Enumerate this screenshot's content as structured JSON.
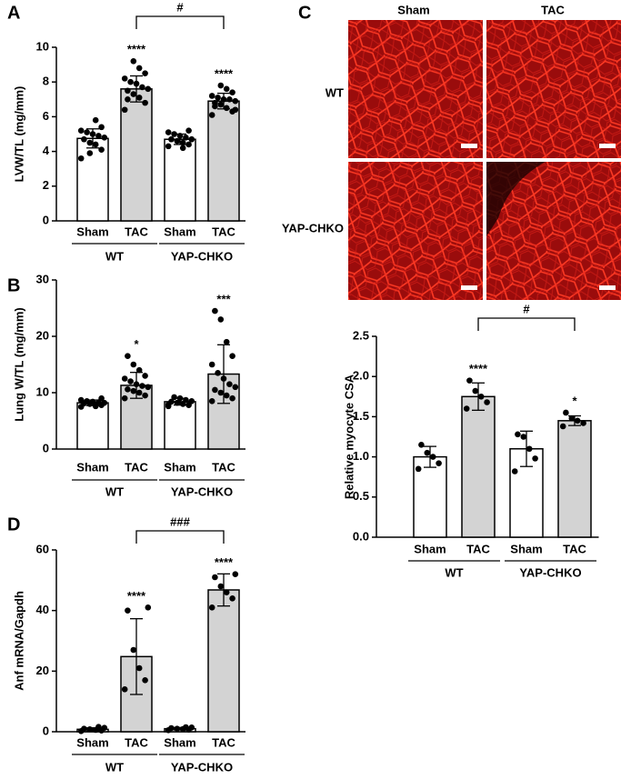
{
  "chart_data": [
    {
      "type": "bar",
      "panel": "A",
      "ylabel": "LVW/TL (mg/mm)",
      "categories": [
        "Sham",
        "TAC",
        "Sham",
        "TAC"
      ],
      "groups": [
        "WT",
        "YAP-CHKO"
      ],
      "values": [
        4.75,
        7.6,
        4.7,
        6.9
      ],
      "errors": [
        0.55,
        0.75,
        0.3,
        0.45
      ],
      "points": [
        [
          3.6,
          4.1,
          4.4,
          4.5,
          4.7,
          4.8,
          4.9,
          5.0,
          5.1,
          5.2,
          5.4,
          5.8,
          3.9
        ],
        [
          6.4,
          6.8,
          7.1,
          7.3,
          7.5,
          7.6,
          7.7,
          7.9,
          8.0,
          8.2,
          8.5,
          8.8,
          9.2,
          7.0
        ],
        [
          4.3,
          4.4,
          4.5,
          4.6,
          4.7,
          4.7,
          4.8,
          4.9,
          5.0,
          5.1,
          5.2,
          4.2
        ],
        [
          6.1,
          6.3,
          6.5,
          6.7,
          6.8,
          6.9,
          7.0,
          7.0,
          7.1,
          7.2,
          7.4,
          7.6,
          7.8,
          6.6,
          6.4
        ]
      ],
      "significance": [
        null,
        "****",
        null,
        "****"
      ],
      "bracket_label": "#",
      "colors": [
        "#ffffff",
        "#d3d3d3"
      ],
      "ylim": [
        0,
        10
      ],
      "yticks": [
        0,
        2,
        4,
        6,
        8,
        10
      ]
    },
    {
      "type": "bar",
      "panel": "B",
      "ylabel": "Lung W/TL (mg/mm)",
      "categories": [
        "Sham",
        "TAC",
        "Sham",
        "TAC"
      ],
      "groups": [
        "WT",
        "YAP-CHKO"
      ],
      "values": [
        8.2,
        11.3,
        8.4,
        13.3
      ],
      "errors": [
        0.5,
        2.3,
        0.6,
        5.2
      ],
      "points": [
        [
          7.5,
          7.8,
          7.9,
          8.0,
          8.1,
          8.2,
          8.3,
          8.4,
          8.5,
          8.7,
          9.0,
          7.6
        ],
        [
          9.0,
          9.5,
          10.0,
          10.3,
          10.6,
          11.0,
          11.2,
          11.5,
          12.0,
          12.5,
          13.0,
          14.0,
          15.0,
          16.5
        ],
        [
          7.6,
          7.8,
          8.0,
          8.2,
          8.4,
          8.5,
          8.7,
          9.0,
          9.2,
          7.9
        ],
        [
          8.5,
          9.0,
          9.5,
          10.0,
          10.5,
          11.0,
          11.5,
          12.5,
          13.5,
          15.0,
          16.5,
          19.0,
          23.0,
          24.5
        ]
      ],
      "significance": [
        null,
        "*",
        null,
        "***"
      ],
      "colors": [
        "#ffffff",
        "#d3d3d3"
      ],
      "ylim": [
        0,
        30
      ],
      "yticks": [
        0,
        10,
        20,
        30
      ]
    },
    {
      "type": "bar",
      "panel": "D",
      "ylabel": "Anf mRNA/Gapdh",
      "categories": [
        "Sham",
        "TAC",
        "Sham",
        "TAC"
      ],
      "groups": [
        "WT",
        "YAP-CHKO"
      ],
      "values": [
        0.8,
        24.8,
        1.0,
        46.8
      ],
      "errors": [
        0.5,
        12.5,
        0.4,
        5.3
      ],
      "points": [
        [
          0.2,
          0.4,
          0.6,
          0.8,
          1.0,
          1.3,
          1.6
        ],
        [
          14.0,
          17.0,
          21.0,
          27.0,
          40.0,
          41.0
        ],
        [
          0.5,
          0.7,
          0.9,
          1.0,
          1.2,
          1.4,
          1.5
        ],
        [
          41.0,
          44.0,
          46.0,
          48.0,
          51.0,
          52.0
        ]
      ],
      "significance": [
        null,
        "****",
        null,
        "****"
      ],
      "bracket_label": "###",
      "colors": [
        "#ffffff",
        "#d3d3d3"
      ],
      "ylim": [
        0,
        60
      ],
      "yticks": [
        0,
        20,
        40,
        60
      ]
    },
    {
      "type": "bar",
      "ylabel": "Relative myocyte CSA",
      "categories": [
        "Sham",
        "TAC",
        "Sham",
        "TAC"
      ],
      "groups": [
        "WT",
        "YAP-CHKO"
      ],
      "values": [
        1.0,
        1.75,
        1.1,
        1.45
      ],
      "errors": [
        0.13,
        0.17,
        0.22,
        0.06
      ],
      "points": [
        [
          0.85,
          0.92,
          1.0,
          1.05,
          1.15
        ],
        [
          1.6,
          1.68,
          1.75,
          1.82,
          1.95
        ],
        [
          0.82,
          0.98,
          1.1,
          1.25,
          1.28
        ],
        [
          1.38,
          1.42,
          1.45,
          1.48,
          1.55
        ]
      ],
      "significance": [
        null,
        "****",
        null,
        "*"
      ],
      "bracket_label": "#",
      "colors": [
        "#ffffff",
        "#d3d3d3"
      ],
      "ylim": [
        0,
        2.5
      ],
      "yticks": [
        {
          "value": 0,
          "label": "0.0"
        },
        0.5,
        {
          "value": 1,
          "label": "1.0"
        },
        1.5,
        {
          "value": 2,
          "label": "2.0"
        },
        2.5
      ]
    }
  ],
  "image_grid": {
    "panel": "C",
    "columns": [
      "Sham",
      "TAC"
    ],
    "rows": [
      "WT",
      "YAP-CHKO"
    ]
  }
}
